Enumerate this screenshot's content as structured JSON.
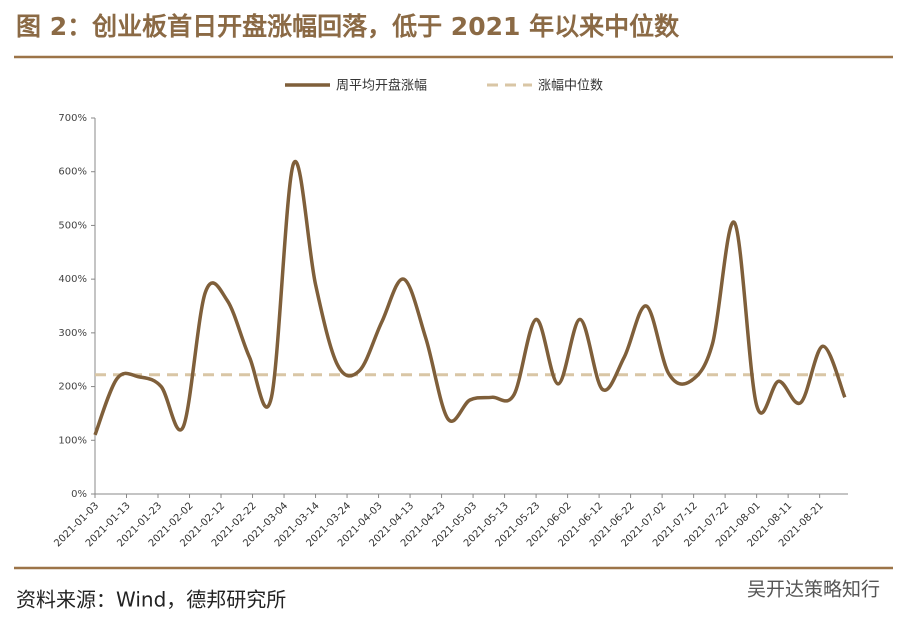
{
  "chart_data": {
    "type": "line",
    "title": "图 2：创业板首日开盘涨幅回落，低于 2021 年以来中位数",
    "source": "资料来源：Wind，德邦研究所",
    "watermark": "吴开达策略知行",
    "x": [
      "2021-01-03",
      "2021-01-10",
      "2021-01-17",
      "2021-01-24",
      "2021-01-31",
      "2021-02-07",
      "2021-02-14",
      "2021-02-21",
      "2021-02-28",
      "2021-03-07",
      "2021-03-14",
      "2021-03-21",
      "2021-03-28",
      "2021-04-04",
      "2021-04-11",
      "2021-04-18",
      "2021-04-25",
      "2021-05-02",
      "2021-05-09",
      "2021-05-16",
      "2021-05-23",
      "2021-05-30",
      "2021-06-06",
      "2021-06-13",
      "2021-06-20",
      "2021-06-27",
      "2021-07-04",
      "2021-07-11",
      "2021-07-18",
      "2021-07-25",
      "2021-08-01",
      "2021-08-08",
      "2021-08-15",
      "2021-08-22",
      "2021-08-29"
    ],
    "series": [
      {
        "name": "周平均开盘涨幅",
        "color": "#7f5f3a",
        "values": [
          110,
          215,
          218,
          200,
          125,
          375,
          360,
          255,
          180,
          615,
          390,
          240,
          230,
          320,
          400,
          290,
          140,
          175,
          180,
          185,
          325,
          205,
          325,
          195,
          255,
          350,
          225,
          210,
          280,
          505,
          165,
          210,
          170,
          275,
          180
        ]
      }
    ],
    "reference_line": {
      "name": "涨幅中位数",
      "value": 222,
      "color": "#d9c6a5"
    },
    "xlim": [
      "2021-01-03",
      "2021-08-30"
    ],
    "xticks": [
      "2021-01-03",
      "2021-01-13",
      "2021-01-23",
      "2021-02-02",
      "2021-02-12",
      "2021-02-22",
      "2021-03-04",
      "2021-03-14",
      "2021-03-24",
      "2021-04-03",
      "2021-04-13",
      "2021-04-23",
      "2021-05-03",
      "2021-05-13",
      "2021-05-23",
      "2021-06-02",
      "2021-06-12",
      "2021-06-22",
      "2021-07-02",
      "2021-07-12",
      "2021-07-22",
      "2021-08-01",
      "2021-08-11",
      "2021-08-21"
    ],
    "ylim": [
      0,
      700
    ],
    "yticks": [
      {
        "value": 0,
        "label": "0%"
      },
      {
        "value": 100,
        "label": "100%"
      },
      {
        "value": 200,
        "label": "200%"
      },
      {
        "value": 300,
        "label": "300%"
      },
      {
        "value": 400,
        "label": "400%"
      },
      {
        "value": 500,
        "label": "500%"
      },
      {
        "value": 600,
        "label": "600%"
      },
      {
        "value": 700,
        "label": "700%"
      }
    ],
    "grid": false
  }
}
